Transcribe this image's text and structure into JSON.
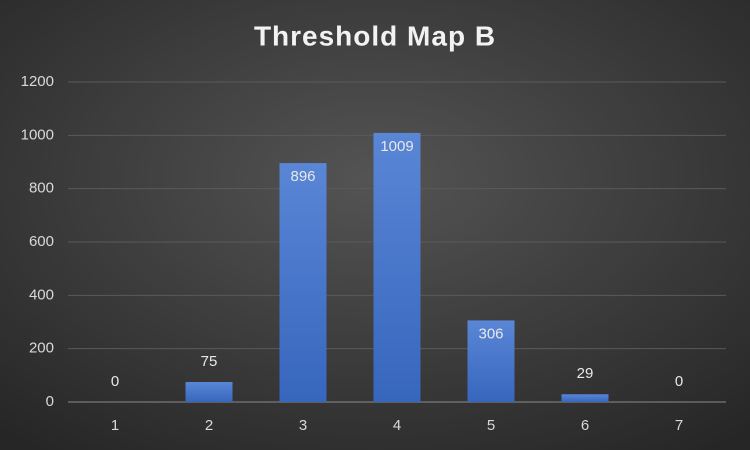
{
  "chart_data": {
    "type": "bar",
    "title": "Threshold Map B",
    "categories": [
      "1",
      "2",
      "3",
      "4",
      "5",
      "6",
      "7"
    ],
    "values": [
      0,
      75,
      896,
      1009,
      306,
      29,
      0
    ],
    "color": "#4472c4",
    "ylim": [
      0,
      1200
    ],
    "yticks": [
      0,
      200,
      400,
      600,
      800,
      1000,
      1200
    ],
    "grid": true
  }
}
